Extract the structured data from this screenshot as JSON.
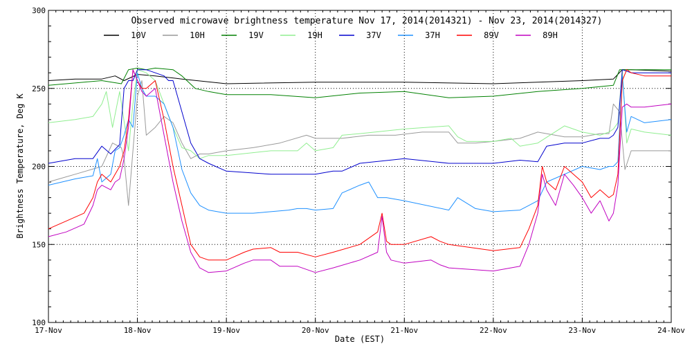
{
  "chart_data": {
    "type": "line",
    "title": "Observed microwave brightness temperature Nov 17, 2014(2014321) - Nov 23, 2014(2014327)",
    "xlabel": "Date (EST)",
    "ylabel": "Brightness Temperature, Deg K",
    "xlim": [
      0,
      7
    ],
    "ylim": [
      100,
      300
    ],
    "x_tick_labels": [
      "17-Nov",
      "18-Nov",
      "19-Nov",
      "20-Nov",
      "21-Nov",
      "22-Nov",
      "23-Nov",
      "24-Nov"
    ],
    "y_ticks": [
      100,
      150,
      200,
      250,
      300
    ],
    "grid": "dotted",
    "legend_position": "top",
    "series": [
      {
        "name": "10V",
        "color": "#000000",
        "x": [
          0,
          0.3,
          0.6,
          0.75,
          0.85,
          1.0,
          1.2,
          1.5,
          2.0,
          3.0,
          4.0,
          5.0,
          5.5,
          6.0,
          6.35,
          6.45,
          6.55,
          7.0
        ],
        "y": [
          255,
          256,
          256,
          258,
          255,
          259,
          258,
          256,
          253,
          254,
          254,
          253,
          254,
          255,
          256,
          262,
          262,
          261
        ]
      },
      {
        "name": "10H",
        "color": "#999999",
        "x": [
          0,
          0.3,
          0.6,
          0.72,
          0.82,
          0.85,
          0.9,
          0.95,
          1.0,
          1.05,
          1.1,
          1.2,
          1.3,
          1.4,
          1.5,
          1.6,
          1.7,
          1.8,
          2.0,
          2.3,
          2.6,
          2.9,
          3.0,
          3.3,
          3.6,
          3.9,
          4.2,
          4.5,
          4.6,
          4.8,
          5.0,
          5.3,
          5.5,
          5.8,
          6.0,
          6.2,
          6.3,
          6.35,
          6.42,
          6.48,
          6.55,
          6.7,
          7.0
        ],
        "y": [
          190,
          195,
          200,
          215,
          212,
          205,
          175,
          210,
          245,
          255,
          220,
          225,
          232,
          228,
          215,
          205,
          208,
          208,
          210,
          212,
          215,
          220,
          218,
          218,
          220,
          220,
          222,
          222,
          215,
          215,
          216,
          218,
          222,
          219,
          219,
          221,
          221,
          240,
          235,
          198,
          210,
          210,
          210
        ]
      },
      {
        "name": "19V",
        "color": "#008000",
        "x": [
          0,
          0.4,
          0.6,
          0.82,
          0.9,
          1.0,
          1.1,
          1.2,
          1.4,
          1.5,
          1.65,
          1.8,
          2.0,
          2.5,
          3.0,
          3.5,
          4.0,
          4.5,
          5.0,
          5.5,
          6.0,
          6.35,
          6.42,
          6.48,
          7.0
        ],
        "y": [
          252,
          254,
          255,
          253,
          262,
          263,
          262,
          263,
          262,
          258,
          250,
          248,
          246,
          246,
          244,
          247,
          248,
          244,
          245,
          248,
          250,
          252,
          262,
          262,
          262
        ]
      },
      {
        "name": "19H",
        "color": "#90EE90",
        "x": [
          0,
          0.3,
          0.5,
          0.6,
          0.65,
          0.72,
          0.8,
          0.9,
          0.95,
          1.0,
          1.1,
          1.2,
          1.3,
          1.4,
          1.5,
          1.6,
          1.7,
          1.8,
          2.0,
          2.5,
          2.8,
          2.9,
          3.0,
          3.2,
          3.3,
          3.5,
          4.0,
          4.5,
          4.6,
          4.7,
          5.0,
          5.2,
          5.3,
          5.5,
          5.8,
          6.0,
          6.2,
          6.3,
          6.35,
          6.4,
          6.45,
          6.5,
          6.55,
          6.7,
          7.0
        ],
        "y": [
          228,
          230,
          232,
          240,
          248,
          225,
          248,
          210,
          240,
          262,
          260,
          255,
          240,
          225,
          212,
          210,
          205,
          207,
          207,
          210,
          210,
          215,
          210,
          212,
          220,
          221,
          224,
          226,
          219,
          216,
          216,
          218,
          213,
          215,
          226,
          222,
          220,
          222,
          224,
          228,
          262,
          215,
          224,
          222,
          220
        ]
      },
      {
        "name": "37V",
        "color": "#0000CD",
        "x": [
          0,
          0.3,
          0.5,
          0.6,
          0.7,
          0.8,
          0.85,
          0.9,
          0.95,
          1.0,
          1.1,
          1.2,
          1.3,
          1.35,
          1.4,
          1.5,
          1.6,
          1.7,
          1.8,
          2.0,
          2.5,
          3.0,
          3.2,
          3.3,
          3.5,
          4.0,
          4.5,
          5.0,
          5.3,
          5.5,
          5.6,
          5.8,
          6.0,
          6.2,
          6.3,
          6.35,
          6.4,
          6.45,
          6.55,
          7.0
        ],
        "y": [
          202,
          205,
          205,
          213,
          208,
          214,
          250,
          255,
          255,
          262,
          262,
          260,
          258,
          255,
          255,
          235,
          215,
          205,
          202,
          197,
          195,
          195,
          197,
          197,
          202,
          205,
          202,
          202,
          204,
          203,
          213,
          215,
          215,
          218,
          218,
          220,
          225,
          262,
          260,
          260
        ]
      },
      {
        "name": "37H",
        "color": "#1E90FF",
        "x": [
          0,
          0.3,
          0.5,
          0.55,
          0.6,
          0.7,
          0.75,
          0.8,
          0.85,
          0.9,
          0.95,
          1.0,
          1.05,
          1.1,
          1.2,
          1.3,
          1.4,
          1.5,
          1.6,
          1.7,
          1.8,
          2.0,
          2.3,
          2.5,
          2.7,
          2.8,
          2.9,
          3.0,
          3.2,
          3.3,
          3.5,
          3.6,
          3.7,
          3.8,
          4.0,
          4.5,
          4.6,
          4.8,
          5.0,
          5.3,
          5.5,
          5.6,
          5.8,
          6.0,
          6.2,
          6.3,
          6.35,
          6.4,
          6.45,
          6.5,
          6.55,
          6.7,
          7.0
        ],
        "y": [
          188,
          192,
          194,
          205,
          190,
          195,
          210,
          212,
          220,
          230,
          225,
          260,
          250,
          245,
          245,
          240,
          225,
          198,
          183,
          175,
          172,
          170,
          170,
          171,
          172,
          173,
          173,
          172,
          173,
          183,
          188,
          190,
          180,
          180,
          178,
          172,
          180,
          173,
          171,
          172,
          178,
          190,
          195,
          200,
          198,
          200,
          200,
          203,
          258,
          222,
          232,
          228,
          230
        ]
      },
      {
        "name": "89V",
        "color": "#FF0000",
        "x": [
          0,
          0.2,
          0.4,
          0.5,
          0.55,
          0.6,
          0.7,
          0.75,
          0.8,
          0.85,
          0.9,
          0.95,
          1.0,
          1.05,
          1.1,
          1.2,
          1.3,
          1.4,
          1.5,
          1.6,
          1.7,
          1.8,
          2.0,
          2.2,
          2.3,
          2.5,
          2.6,
          2.8,
          3.0,
          3.2,
          3.5,
          3.7,
          3.75,
          3.8,
          3.85,
          4.0,
          4.3,
          4.4,
          4.5,
          5.0,
          5.3,
          5.4,
          5.5,
          5.55,
          5.6,
          5.7,
          5.8,
          5.9,
          6.0,
          6.1,
          6.2,
          6.3,
          6.35,
          6.4,
          6.45,
          6.5,
          6.55,
          6.7,
          7.0
        ],
        "y": [
          160,
          165,
          170,
          180,
          190,
          195,
          190,
          195,
          200,
          210,
          230,
          262,
          255,
          250,
          250,
          255,
          230,
          200,
          175,
          150,
          142,
          140,
          140,
          145,
          147,
          148,
          145,
          145,
          142,
          145,
          150,
          158,
          170,
          152,
          150,
          150,
          155,
          152,
          150,
          146,
          148,
          160,
          175,
          200,
          190,
          185,
          200,
          195,
          190,
          180,
          185,
          180,
          182,
          195,
          255,
          262,
          260,
          258,
          258
        ]
      },
      {
        "name": "89H",
        "color": "#C000C0",
        "x": [
          0,
          0.2,
          0.4,
          0.5,
          0.55,
          0.6,
          0.7,
          0.75,
          0.8,
          0.85,
          0.9,
          0.95,
          1.0,
          1.05,
          1.1,
          1.2,
          1.3,
          1.4,
          1.5,
          1.6,
          1.7,
          1.8,
          2.0,
          2.2,
          2.3,
          2.5,
          2.6,
          2.8,
          3.0,
          3.2,
          3.5,
          3.7,
          3.75,
          3.8,
          3.85,
          4.0,
          4.3,
          4.4,
          4.5,
          5.0,
          5.3,
          5.4,
          5.5,
          5.55,
          5.6,
          5.7,
          5.8,
          5.9,
          6.0,
          6.1,
          6.2,
          6.3,
          6.35,
          6.4,
          6.45,
          6.5,
          6.55,
          6.7,
          7.0
        ],
        "y": [
          155,
          158,
          163,
          175,
          185,
          188,
          185,
          190,
          192,
          205,
          225,
          262,
          255,
          248,
          245,
          250,
          220,
          190,
          165,
          145,
          135,
          132,
          133,
          138,
          140,
          140,
          136,
          136,
          132,
          135,
          140,
          145,
          168,
          145,
          140,
          138,
          140,
          137,
          135,
          133,
          136,
          150,
          170,
          195,
          185,
          175,
          195,
          188,
          180,
          170,
          178,
          165,
          170,
          188,
          238,
          240,
          238,
          238,
          240
        ]
      }
    ]
  }
}
